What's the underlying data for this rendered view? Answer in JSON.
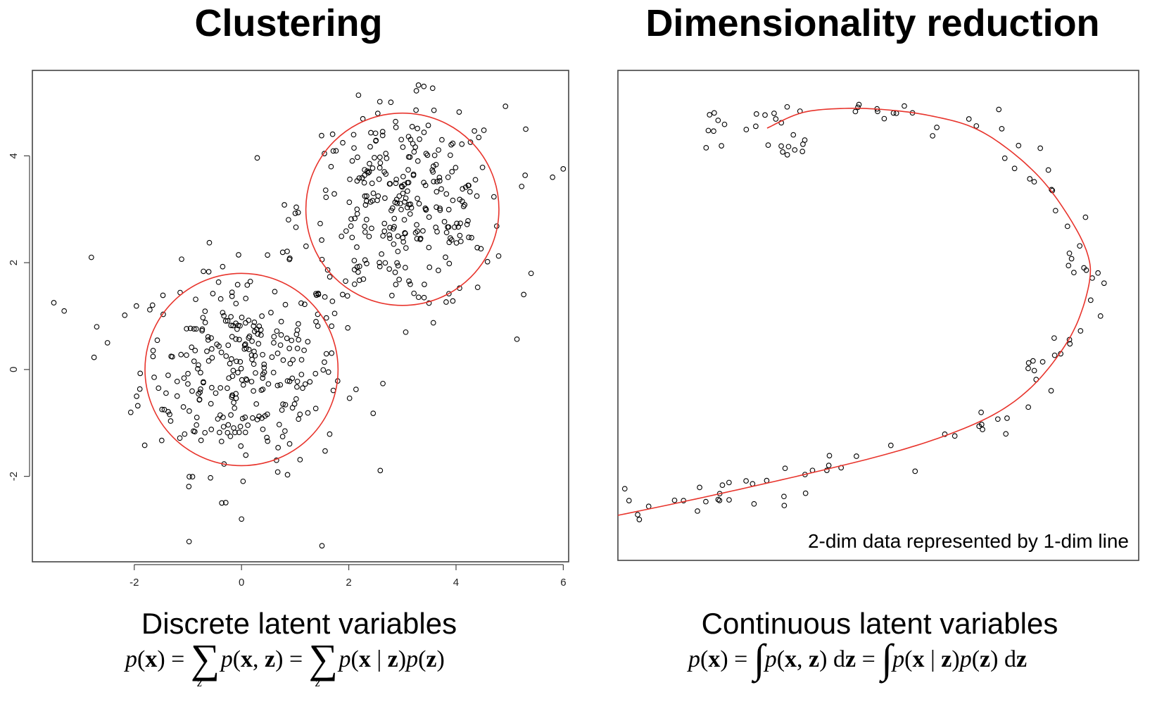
{
  "titles": {
    "left": "Clustering",
    "right": "Dimensionality reduction"
  },
  "subtitles": {
    "left": "Discrete latent variables",
    "right": "Continuous latent variables"
  },
  "formulas": {
    "left": "p(x) = Σ_z p(x, z) = Σ_z p(x | z)p(z)",
    "right": "p(x) = ∫ p(x, z) dz = ∫ p(x | z)p(z) dz"
  },
  "chart_data": [
    {
      "type": "scatter",
      "title": "Clustering",
      "xlim": [
        -3.9,
        6.1
      ],
      "ylim": [
        -3.6,
        5.6
      ],
      "x_ticks": [
        -2,
        0,
        2,
        4,
        6
      ],
      "y_ticks": [
        -2,
        0,
        2,
        4
      ],
      "tick_labels_x": [
        "-2",
        "0",
        "2",
        "4",
        "6"
      ],
      "tick_labels_y": [
        "-2",
        "0",
        "2",
        "4"
      ],
      "grid": false,
      "clusters": [
        {
          "center": [
            0,
            0
          ],
          "radius": 1.8,
          "n_points": 300
        },
        {
          "center": [
            3,
            3
          ],
          "radius": 1.8,
          "n_points": 300
        }
      ],
      "outlier_points": [
        [
          -3.5,
          1.25
        ],
        [
          -2.8,
          2.1
        ],
        [
          -2.7,
          0.8
        ],
        [
          5.8,
          3.6
        ],
        [
          3.4,
          5.3
        ],
        [
          1.5,
          -3.3
        ],
        [
          0,
          -2.8
        ],
        [
          5.4,
          1.8
        ],
        [
          5.3,
          4.5
        ],
        [
          -2.5,
          0.5
        ]
      ],
      "circles_color": "#e8342c",
      "point_color": "#000000"
    },
    {
      "type": "scatter",
      "title": "Dimensionality reduction",
      "annotation": "2-dim data represented by 1-dim line",
      "grid": false,
      "curve": "smooth open loop fitted through the points",
      "curve_color": "#e8342c",
      "point_color": "#000000",
      "n_points": 100
    }
  ]
}
